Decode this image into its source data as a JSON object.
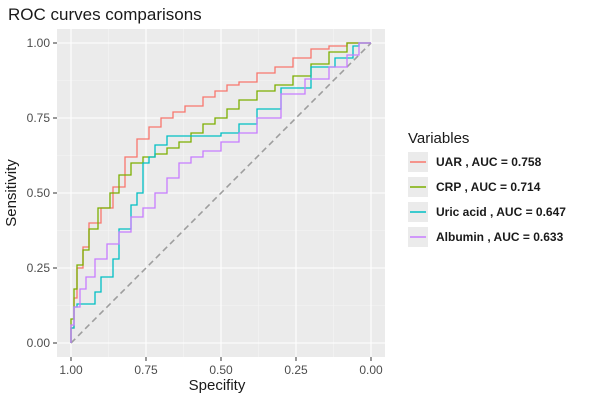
{
  "chart_data": {
    "type": "line",
    "title": "ROC curves comparisons",
    "xlabel": "Specifity",
    "ylabel": "Sensitivity",
    "x_reversed": true,
    "xlim": [
      1.0,
      0.0
    ],
    "ylim": [
      0.0,
      1.0
    ],
    "x_ticks": [
      "1.00",
      "0.75",
      "0.50",
      "0.25",
      "0.00"
    ],
    "y_ticks": [
      "0.00",
      "0.25",
      "0.50",
      "0.75",
      "1.00"
    ],
    "grid": true,
    "background": "#ebebeb",
    "legend": {
      "title": "Variables",
      "placement": "right"
    },
    "reference_line": {
      "style": "dashed",
      "color": "#9e9e9e",
      "from": [
        1.0,
        0.0
      ],
      "to": [
        0.0,
        1.0
      ]
    },
    "series": [
      {
        "name": "UAR , AUC = 0.758",
        "color": "#f8766d",
        "points": [
          [
            1.0,
            0.0
          ],
          [
            0.99,
            0.05
          ],
          [
            0.98,
            0.15
          ],
          [
            0.96,
            0.25
          ],
          [
            0.94,
            0.32
          ],
          [
            0.9,
            0.4
          ],
          [
            0.86,
            0.45
          ],
          [
            0.82,
            0.52
          ],
          [
            0.78,
            0.62
          ],
          [
            0.74,
            0.68
          ],
          [
            0.7,
            0.72
          ],
          [
            0.66,
            0.75
          ],
          [
            0.62,
            0.77
          ],
          [
            0.56,
            0.79
          ],
          [
            0.52,
            0.82
          ],
          [
            0.48,
            0.84
          ],
          [
            0.44,
            0.86
          ],
          [
            0.38,
            0.87
          ],
          [
            0.32,
            0.9
          ],
          [
            0.26,
            0.92
          ],
          [
            0.2,
            0.95
          ],
          [
            0.14,
            0.98
          ],
          [
            0.08,
            0.99
          ],
          [
            0.04,
            1.0
          ],
          [
            0.0,
            1.0
          ]
        ]
      },
      {
        "name": "CRP , AUC = 0.714",
        "color": "#7cae00",
        "points": [
          [
            1.0,
            0.0
          ],
          [
            0.99,
            0.08
          ],
          [
            0.98,
            0.18
          ],
          [
            0.96,
            0.26
          ],
          [
            0.94,
            0.31
          ],
          [
            0.91,
            0.38
          ],
          [
            0.87,
            0.45
          ],
          [
            0.84,
            0.5
          ],
          [
            0.8,
            0.56
          ],
          [
            0.76,
            0.6
          ],
          [
            0.72,
            0.62
          ],
          [
            0.68,
            0.63
          ],
          [
            0.64,
            0.65
          ],
          [
            0.6,
            0.67
          ],
          [
            0.56,
            0.7
          ],
          [
            0.52,
            0.73
          ],
          [
            0.48,
            0.75
          ],
          [
            0.44,
            0.78
          ],
          [
            0.38,
            0.81
          ],
          [
            0.32,
            0.84
          ],
          [
            0.26,
            0.86
          ],
          [
            0.2,
            0.89
          ],
          [
            0.14,
            0.93
          ],
          [
            0.08,
            0.97
          ],
          [
            0.04,
            1.0
          ],
          [
            0.0,
            1.0
          ]
        ]
      },
      {
        "name": "Uric acid , AUC = 0.647",
        "color": "#00bfc4",
        "points": [
          [
            1.0,
            0.0
          ],
          [
            0.99,
            0.05
          ],
          [
            0.98,
            0.12
          ],
          [
            0.96,
            0.13
          ],
          [
            0.92,
            0.13
          ],
          [
            0.9,
            0.17
          ],
          [
            0.86,
            0.22
          ],
          [
            0.84,
            0.28
          ],
          [
            0.8,
            0.38
          ],
          [
            0.78,
            0.46
          ],
          [
            0.76,
            0.5
          ],
          [
            0.74,
            0.6
          ],
          [
            0.72,
            0.62
          ],
          [
            0.68,
            0.66
          ],
          [
            0.64,
            0.69
          ],
          [
            0.6,
            0.69
          ],
          [
            0.5,
            0.69
          ],
          [
            0.44,
            0.7
          ],
          [
            0.38,
            0.73
          ],
          [
            0.3,
            0.78
          ],
          [
            0.2,
            0.85
          ],
          [
            0.12,
            0.92
          ],
          [
            0.06,
            0.95
          ],
          [
            0.04,
            0.99
          ],
          [
            0.0,
            1.0
          ]
        ]
      },
      {
        "name": "Albumin , AUC = 0.633",
        "color": "#c77cff",
        "points": [
          [
            1.0,
            0.0
          ],
          [
            0.99,
            0.06
          ],
          [
            0.97,
            0.12
          ],
          [
            0.95,
            0.18
          ],
          [
            0.92,
            0.22
          ],
          [
            0.88,
            0.28
          ],
          [
            0.84,
            0.33
          ],
          [
            0.8,
            0.37
          ],
          [
            0.76,
            0.42
          ],
          [
            0.72,
            0.45
          ],
          [
            0.68,
            0.5
          ],
          [
            0.64,
            0.55
          ],
          [
            0.6,
            0.6
          ],
          [
            0.56,
            0.62
          ],
          [
            0.5,
            0.64
          ],
          [
            0.44,
            0.67
          ],
          [
            0.38,
            0.7
          ],
          [
            0.3,
            0.75
          ],
          [
            0.22,
            0.83
          ],
          [
            0.14,
            0.88
          ],
          [
            0.08,
            0.92
          ],
          [
            0.04,
            0.96
          ],
          [
            0.0,
            1.0
          ]
        ]
      }
    ]
  }
}
